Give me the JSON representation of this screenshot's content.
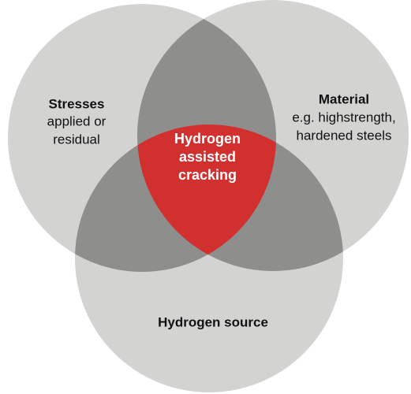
{
  "nodes": [
    {
      "label": "Stresses",
      "description": [
        "applied or",
        "residual"
      ]
    },
    {
      "label": "Material",
      "description": [
        "e.g. highstrength,",
        "hardened steels"
      ]
    },
    {
      "label": "Hydrogen source",
      "description": []
    }
  ],
  "intersection": {
    "label": [
      "Hydrogen",
      "assisted",
      "cracking"
    ]
  }
}
